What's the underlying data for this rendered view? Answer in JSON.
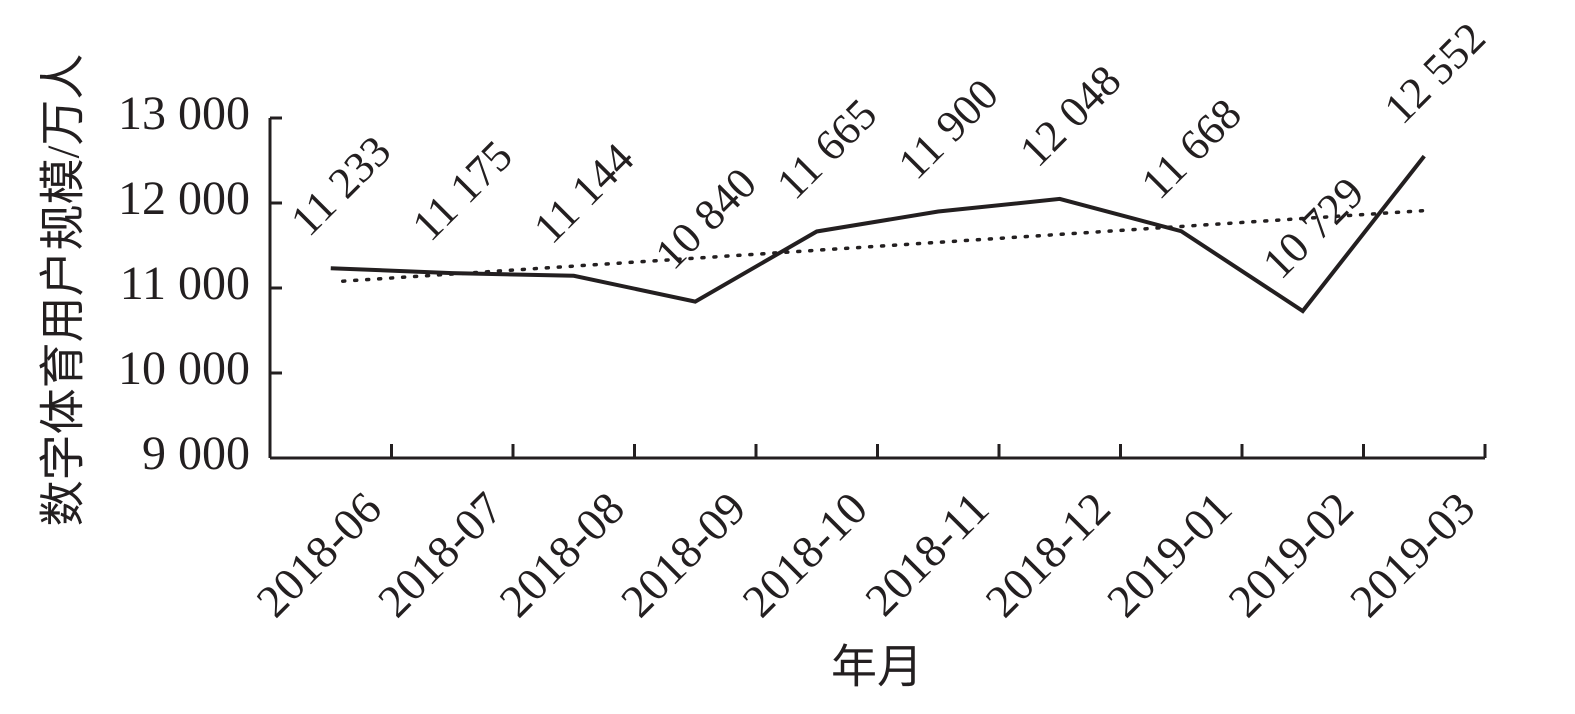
{
  "chart_data": {
    "type": "line",
    "x_label": "年月",
    "y_label": "数字体育用户规模/万人",
    "categories": [
      "2018-06",
      "2018-07",
      "2018-08",
      "2018-09",
      "2018-10",
      "2018-11",
      "2018-12",
      "2019-01",
      "2019-02",
      "2019-03"
    ],
    "values": [
      11233,
      11175,
      11144,
      10840,
      11665,
      11900,
      12048,
      11668,
      10729,
      12552
    ],
    "value_labels": [
      "11 233",
      "11 175",
      "11 144",
      "10 840",
      "11 665",
      "11 900",
      "12 048",
      "11 668",
      "10 729",
      "12 552"
    ],
    "color": "#231f20",
    "trendline": "linear",
    "ylim": [
      9000,
      13000
    ],
    "yticks": [
      {
        "value": 9000,
        "label": "9 000"
      },
      {
        "value": 10000,
        "label": "10 000"
      },
      {
        "value": 11000,
        "label": "11 000"
      },
      {
        "value": 12000,
        "label": "12 000"
      },
      {
        "value": 13000,
        "label": "13 000"
      }
    ]
  }
}
